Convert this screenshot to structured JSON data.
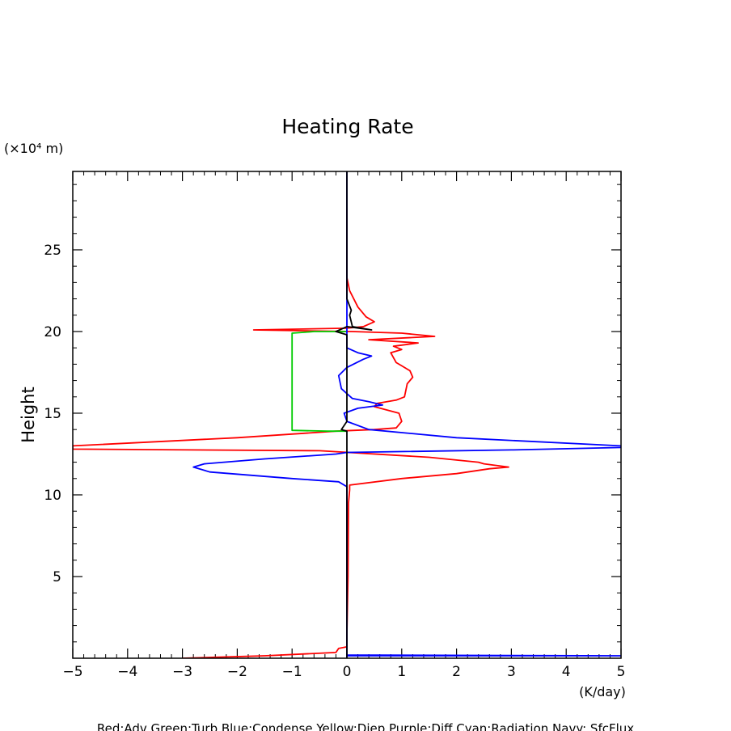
{
  "chart_data": {
    "type": "line",
    "title": "Heating Rate",
    "xlabel": "(K/day)",
    "ylabel": "Height",
    "y_unit": "(×10⁴ m)",
    "xlim": [
      -5,
      5
    ],
    "ylim": [
      0,
      29.8
    ],
    "x_ticks": [
      -5,
      -4,
      -3,
      -2,
      -1,
      0,
      1,
      2,
      3,
      4,
      5
    ],
    "x_tick_labels": [
      "−5",
      "−4",
      "−3",
      "−2",
      "−1",
      "0",
      "1",
      "2",
      "3",
      "4",
      "5"
    ],
    "y_ticks": [
      5,
      10,
      15,
      20,
      25
    ],
    "y_tick_labels": [
      "5",
      "10",
      "15",
      "20",
      "25"
    ],
    "grid": false,
    "legend": "Red:Adv  Green:Turb  Blue:Condense  Yellow:Diep  Purple:Diff  Cyan:Radiation  Navy: SfcFlux",
    "series": [
      {
        "name": "Adv",
        "color": "#ff0000",
        "points": [
          [
            -3.0,
            0.0
          ],
          [
            -1.5,
            0.15
          ],
          [
            -0.2,
            0.35
          ],
          [
            -0.15,
            0.6
          ],
          [
            0.0,
            0.7
          ],
          [
            0.0,
            1.5
          ],
          [
            0.02,
            5
          ],
          [
            0.03,
            9.5
          ],
          [
            0.05,
            10.3
          ],
          [
            0.05,
            10.6
          ],
          [
            1.0,
            11.0
          ],
          [
            2.0,
            11.3
          ],
          [
            2.6,
            11.6
          ],
          [
            2.95,
            11.7
          ],
          [
            2.5,
            11.9
          ],
          [
            2.4,
            12.0
          ],
          [
            1.5,
            12.3
          ],
          [
            -0.5,
            12.7
          ],
          [
            -5.0,
            12.8
          ],
          [
            -5.0,
            13.0
          ],
          [
            -2.0,
            13.5
          ],
          [
            -0.2,
            13.9
          ],
          [
            0.5,
            14.0
          ],
          [
            0.9,
            14.1
          ],
          [
            1.0,
            14.5
          ],
          [
            0.95,
            15.0
          ],
          [
            0.5,
            15.4
          ],
          [
            0.55,
            15.6
          ],
          [
            0.9,
            15.8
          ],
          [
            1.05,
            16.0
          ],
          [
            1.1,
            16.8
          ],
          [
            1.2,
            17.2
          ],
          [
            1.15,
            17.6
          ],
          [
            1.0,
            17.9
          ],
          [
            0.9,
            18.1
          ],
          [
            0.8,
            18.7
          ],
          [
            1.0,
            18.9
          ],
          [
            0.85,
            19.1
          ],
          [
            1.3,
            19.3
          ],
          [
            0.4,
            19.5
          ],
          [
            1.6,
            19.7
          ],
          [
            1.0,
            19.9
          ],
          [
            0.1,
            20.0
          ],
          [
            -1.7,
            20.1
          ],
          [
            0.0,
            20.2
          ],
          [
            0.3,
            20.3
          ],
          [
            0.5,
            20.6
          ],
          [
            0.35,
            20.9
          ],
          [
            0.2,
            21.5
          ],
          [
            0.05,
            22.5
          ],
          [
            0.0,
            23.3
          ],
          [
            0.0,
            27.5
          ]
        ]
      },
      {
        "name": "Turb",
        "color": "#00cc00",
        "points": [
          [
            0.0,
            13.9
          ],
          [
            -0.35,
            13.9
          ],
          [
            -1.0,
            13.95
          ],
          [
            -1.0,
            14.1
          ],
          [
            -1.0,
            19.9
          ],
          [
            -0.6,
            20.0
          ],
          [
            0.0,
            20.0
          ]
        ]
      },
      {
        "name": "Condense",
        "color": "#0000ff",
        "points": [
          [
            0.0,
            0.0
          ],
          [
            0.0,
            0.15
          ],
          [
            2.0,
            0.15
          ],
          [
            5.0,
            0.15
          ],
          [
            0.0,
            0.2
          ],
          [
            0.0,
            10.5
          ],
          [
            -0.15,
            10.8
          ],
          [
            -1.0,
            11.0
          ],
          [
            -2.5,
            11.4
          ],
          [
            -2.8,
            11.7
          ],
          [
            -2.6,
            11.9
          ],
          [
            -1.5,
            12.2
          ],
          [
            -0.2,
            12.5
          ],
          [
            0.0,
            12.6
          ],
          [
            3.0,
            12.75
          ],
          [
            5.0,
            12.9
          ],
          [
            5.0,
            13.0
          ],
          [
            2.0,
            13.5
          ],
          [
            0.4,
            14.0
          ],
          [
            0.0,
            14.5
          ],
          [
            -0.05,
            15.0
          ],
          [
            0.2,
            15.3
          ],
          [
            0.65,
            15.5
          ],
          [
            0.4,
            15.7
          ],
          [
            0.1,
            15.9
          ],
          [
            -0.1,
            16.5
          ],
          [
            -0.15,
            17.3
          ],
          [
            0.0,
            17.8
          ],
          [
            0.3,
            18.3
          ],
          [
            0.45,
            18.5
          ],
          [
            0.2,
            18.7
          ],
          [
            0.0,
            19.0
          ],
          [
            0.0,
            29.8
          ]
        ]
      },
      {
        "name": "SfcFlux",
        "color": "#000000",
        "points": [
          [
            0.0,
            0.0
          ],
          [
            0.0,
            13.9
          ],
          [
            -0.1,
            14.0
          ],
          [
            0.0,
            14.5
          ],
          [
            0.0,
            19.8
          ],
          [
            -0.2,
            20.0
          ],
          [
            0.0,
            20.3
          ],
          [
            0.45,
            20.1
          ],
          [
            0.1,
            20.3
          ],
          [
            0.05,
            21.0
          ],
          [
            0.08,
            21.3
          ],
          [
            0.0,
            22.0
          ],
          [
            0.0,
            29.8
          ]
        ]
      }
    ]
  }
}
